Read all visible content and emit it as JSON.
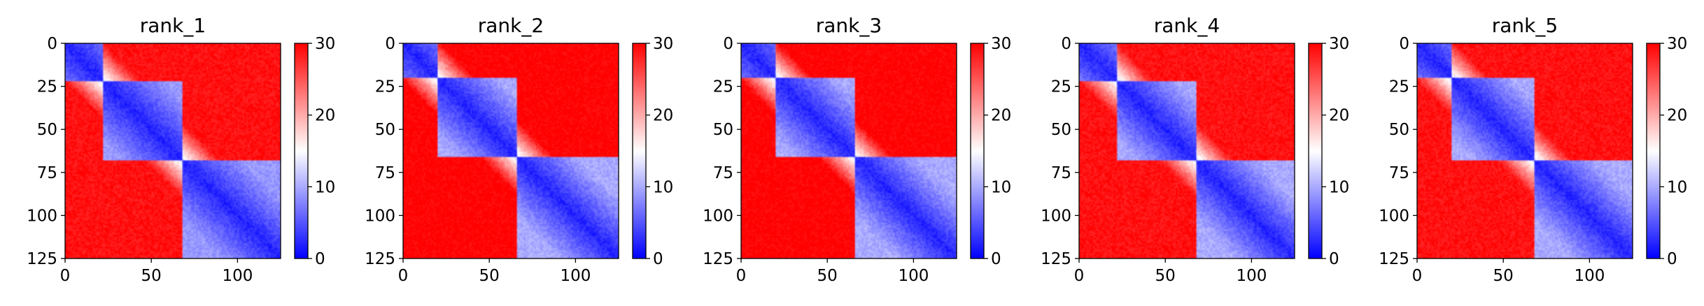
{
  "chart_data": {
    "type": "heatmap",
    "colormap": {
      "name": "bwr",
      "low": "#0000ff",
      "mid": "#ffffff",
      "high": "#ff0000"
    },
    "colorbar": {
      "range": [
        0,
        30
      ],
      "ticks": [
        "0",
        "10",
        "20",
        "30"
      ]
    },
    "axes": {
      "xlim": [
        0,
        125
      ],
      "ylim": [
        125,
        0
      ],
      "x_ticks": [
        "0",
        "50",
        "100"
      ],
      "y_ticks": [
        "0",
        "25",
        "50",
        "75",
        "100",
        "125"
      ]
    },
    "grid": false,
    "matrix_size": 125,
    "panels": [
      {
        "title": "rank_1",
        "domains": [
          {
            "start": 0,
            "end": 22
          },
          {
            "start": 22,
            "end": 68
          },
          {
            "start": 68,
            "end": 125
          }
        ],
        "values": {
          "diagonal": 2,
          "within_domain_far": 9,
          "between_near": 13,
          "between_far": 29
        }
      },
      {
        "title": "rank_2",
        "domains": [
          {
            "start": 0,
            "end": 20
          },
          {
            "start": 20,
            "end": 66
          },
          {
            "start": 66,
            "end": 125
          }
        ],
        "values": {
          "diagonal": 2,
          "within_domain_far": 10,
          "between_near": 13,
          "between_far": 30
        }
      },
      {
        "title": "rank_3",
        "domains": [
          {
            "start": 0,
            "end": 20
          },
          {
            "start": 20,
            "end": 66
          },
          {
            "start": 66,
            "end": 125
          }
        ],
        "values": {
          "diagonal": 2,
          "within_domain_far": 10,
          "between_near": 13,
          "between_far": 30
        }
      },
      {
        "title": "rank_4",
        "domains": [
          {
            "start": 0,
            "end": 22
          },
          {
            "start": 22,
            "end": 68
          },
          {
            "start": 68,
            "end": 125
          }
        ],
        "values": {
          "diagonal": 2,
          "within_domain_far": 10,
          "between_near": 13,
          "between_far": 29
        }
      },
      {
        "title": "rank_5",
        "domains": [
          {
            "start": 0,
            "end": 20
          },
          {
            "start": 20,
            "end": 68
          },
          {
            "start": 68,
            "end": 125
          }
        ],
        "values": {
          "diagonal": 2,
          "within_domain_far": 10,
          "between_near": 13,
          "between_far": 29
        }
      }
    ]
  }
}
